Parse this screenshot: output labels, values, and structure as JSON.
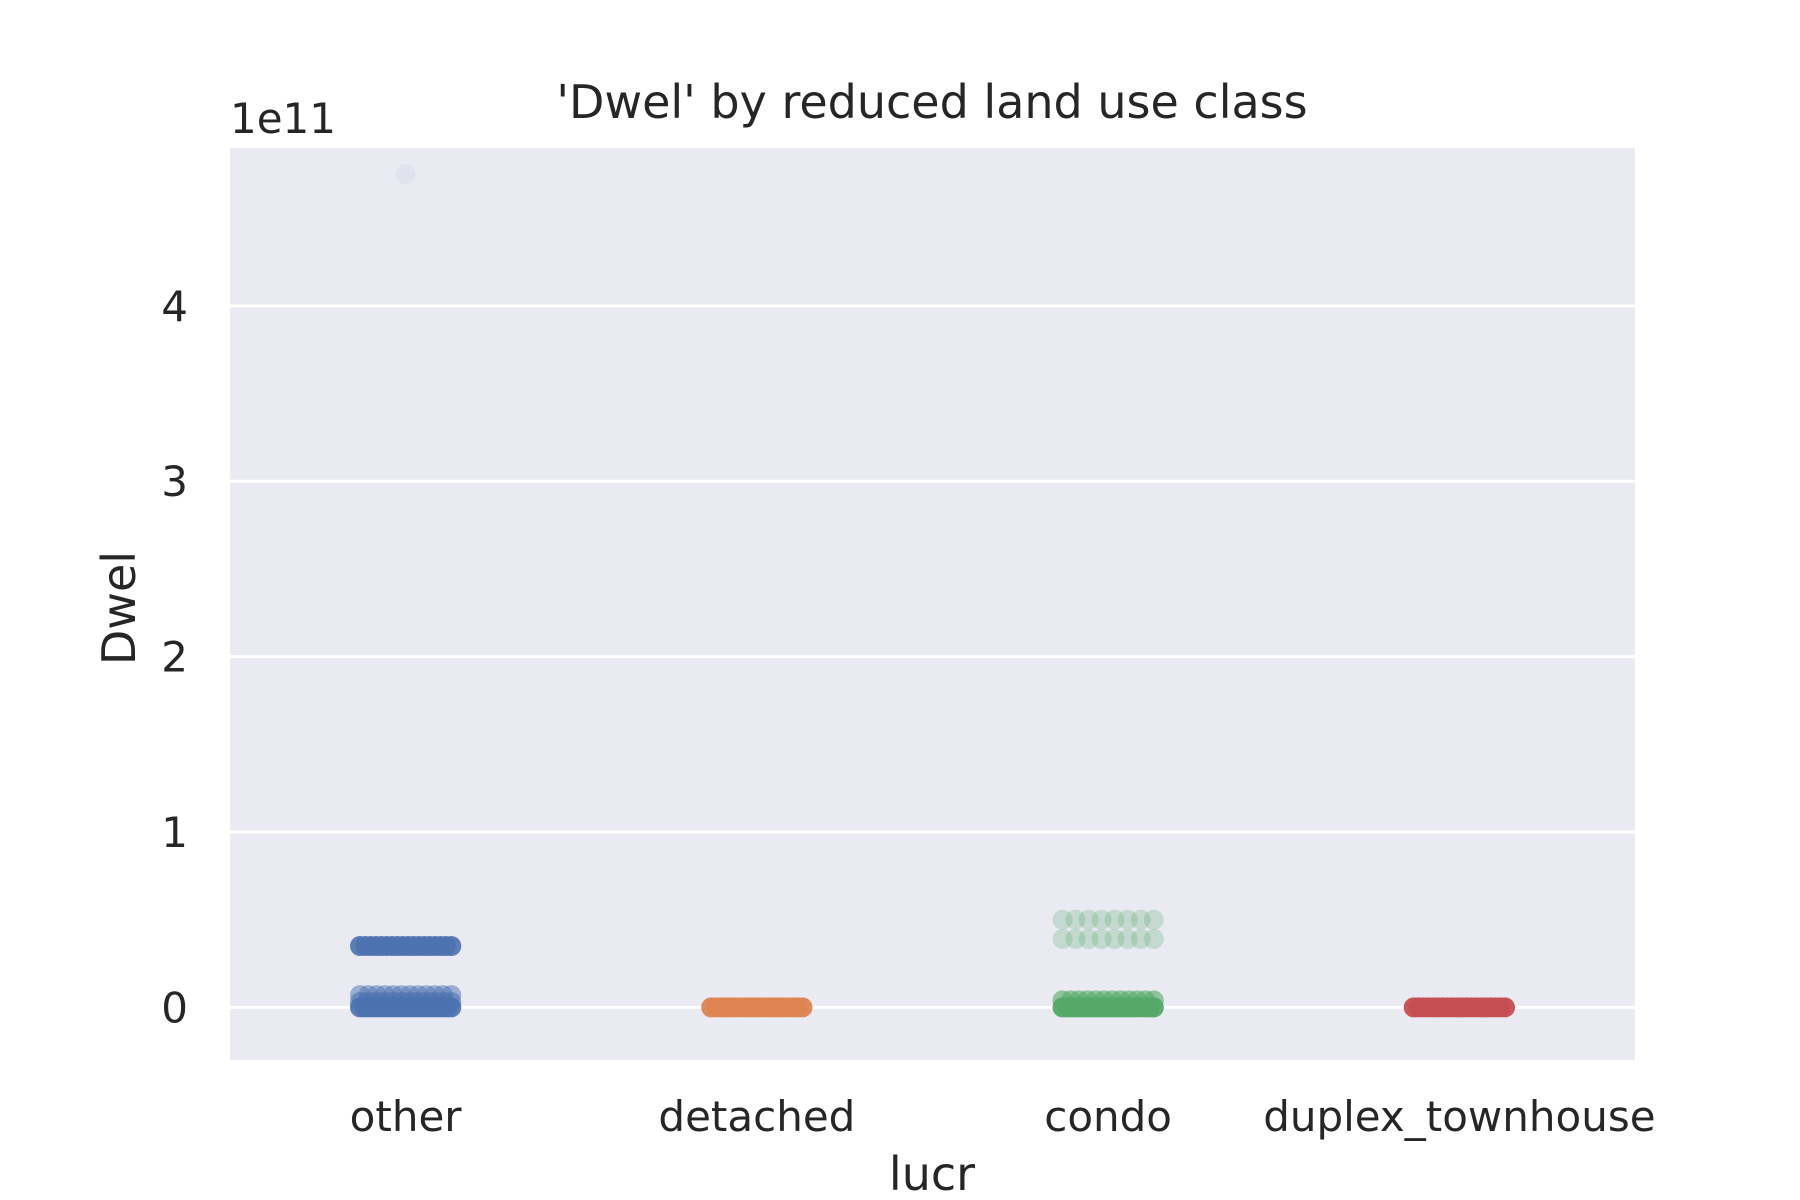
{
  "chart_data": {
    "type": "scatter",
    "subtype": "strip",
    "title": "'Dwel' by reduced land use class",
    "xlabel": "lucr",
    "ylabel": "Dwel",
    "y_offset_label": "1e11",
    "y_scale_factor": 100000000000,
    "categories": [
      "other",
      "detached",
      "condo",
      "duplex_townhouse"
    ],
    "ylim": [
      -0.3,
      4.9
    ],
    "yticks": [
      0,
      1,
      2,
      3,
      4
    ],
    "ytick_labels": [
      "0",
      "1",
      "2",
      "3",
      "4"
    ],
    "grid": true,
    "background": "#eaeaf2",
    "series": [
      {
        "category": "other",
        "color": "#4c72b0",
        "clusters": [
          {
            "y": 0.0,
            "count": 22,
            "opacity": 0.9
          },
          {
            "y": 0.03,
            "count": 14,
            "opacity": 0.6
          },
          {
            "y": 0.07,
            "count": 12,
            "opacity": 0.5
          },
          {
            "y": 0.35,
            "count": 18,
            "opacity": 0.9
          }
        ],
        "outliers": [
          {
            "y": 4.75,
            "opacity": 0.06
          }
        ]
      },
      {
        "category": "detached",
        "color": "#dd8452",
        "clusters": [
          {
            "y": 0.0,
            "count": 20,
            "opacity": 0.95
          }
        ],
        "outliers": []
      },
      {
        "category": "condo",
        "color": "#55a868",
        "clusters": [
          {
            "y": 0.0,
            "count": 20,
            "opacity": 0.95
          },
          {
            "y": 0.04,
            "count": 12,
            "opacity": 0.6
          },
          {
            "y": 0.39,
            "count": 8,
            "opacity": 0.25
          },
          {
            "y": 0.5,
            "count": 8,
            "opacity": 0.25
          }
        ],
        "outliers": []
      },
      {
        "category": "duplex_townhouse",
        "color": "#c44e52",
        "clusters": [
          {
            "y": 0.0,
            "count": 20,
            "opacity": 0.95
          }
        ],
        "outliers": []
      }
    ]
  }
}
